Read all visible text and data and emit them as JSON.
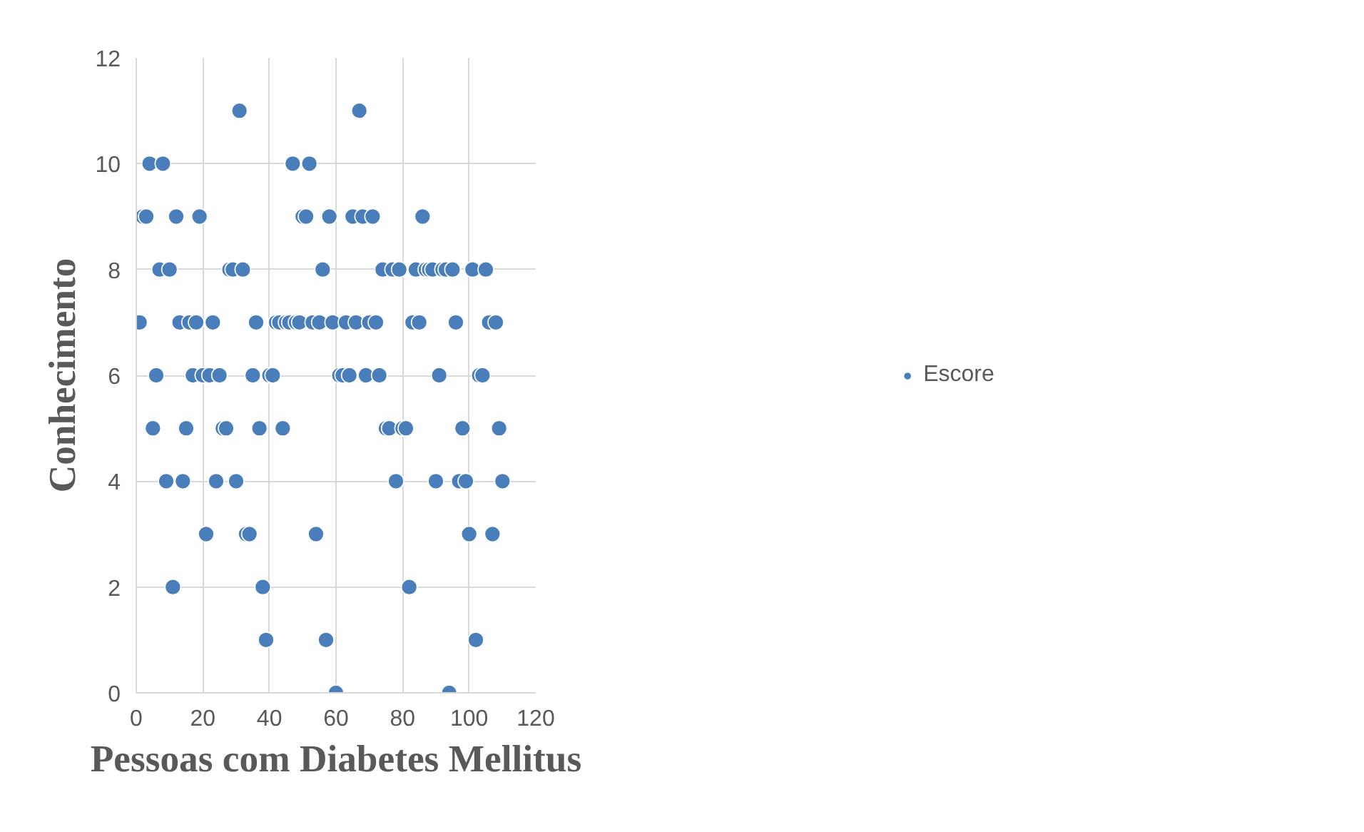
{
  "chart_data": {
    "type": "scatter",
    "xlabel": "Pessoas com Diabetes Mellitus",
    "ylabel": "Conhecimento",
    "x": [
      1,
      2,
      3,
      4,
      5,
      6,
      7,
      8,
      9,
      10,
      11,
      12,
      13,
      14,
      15,
      16,
      17,
      18,
      19,
      20,
      21,
      22,
      23,
      24,
      25,
      26,
      27,
      28,
      29,
      30,
      31,
      32,
      33,
      34,
      35,
      36,
      37,
      38,
      39,
      40,
      41,
      42,
      43,
      44,
      45,
      46,
      47,
      48,
      49,
      50,
      51,
      52,
      53,
      54,
      55,
      56,
      57,
      58,
      59,
      60,
      61,
      62,
      63,
      64,
      65,
      66,
      67,
      68,
      69,
      70,
      71,
      72,
      73,
      74,
      75,
      76,
      77,
      78,
      79,
      80,
      81,
      82,
      83,
      84,
      85,
      86,
      87,
      88,
      89,
      90,
      91,
      92,
      93,
      94,
      95,
      96,
      97,
      98,
      99,
      100,
      101,
      102,
      103,
      104,
      105,
      106,
      107,
      108,
      109,
      110
    ],
    "series": [
      {
        "name": "Escore",
        "color": "#4a7ebb",
        "values": [
          7,
          9,
          9,
          10,
          5,
          6,
          8,
          10,
          4,
          8,
          2,
          9,
          7,
          4,
          5,
          7,
          6,
          7,
          9,
          6,
          3,
          6,
          7,
          4,
          6,
          5,
          5,
          8,
          8,
          4,
          11,
          8,
          3,
          3,
          6,
          7,
          5,
          2,
          1,
          6,
          6,
          7,
          7,
          5,
          7,
          7,
          10,
          7,
          7,
          9,
          9,
          10,
          7,
          3,
          7,
          8,
          1,
          9,
          7,
          0,
          6,
          6,
          7,
          6,
          9,
          7,
          11,
          9,
          6,
          7,
          9,
          7,
          6,
          8,
          5,
          5,
          8,
          4,
          8,
          5,
          5,
          2,
          7,
          8,
          7,
          9,
          8,
          8,
          8,
          4,
          6,
          8,
          8,
          0,
          8,
          7,
          4,
          5,
          4,
          3,
          8,
          1,
          6,
          6,
          8,
          7,
          3,
          7,
          5,
          4
        ]
      }
    ],
    "xlim": [
      0,
      120
    ],
    "xticks": [
      0,
      20,
      40,
      60,
      80,
      100,
      120
    ],
    "ylim": [
      0,
      12
    ],
    "yticks": [
      0,
      2,
      4,
      6,
      8,
      10,
      12
    ],
    "grid": true,
    "legend": "right",
    "marker": "circle"
  }
}
